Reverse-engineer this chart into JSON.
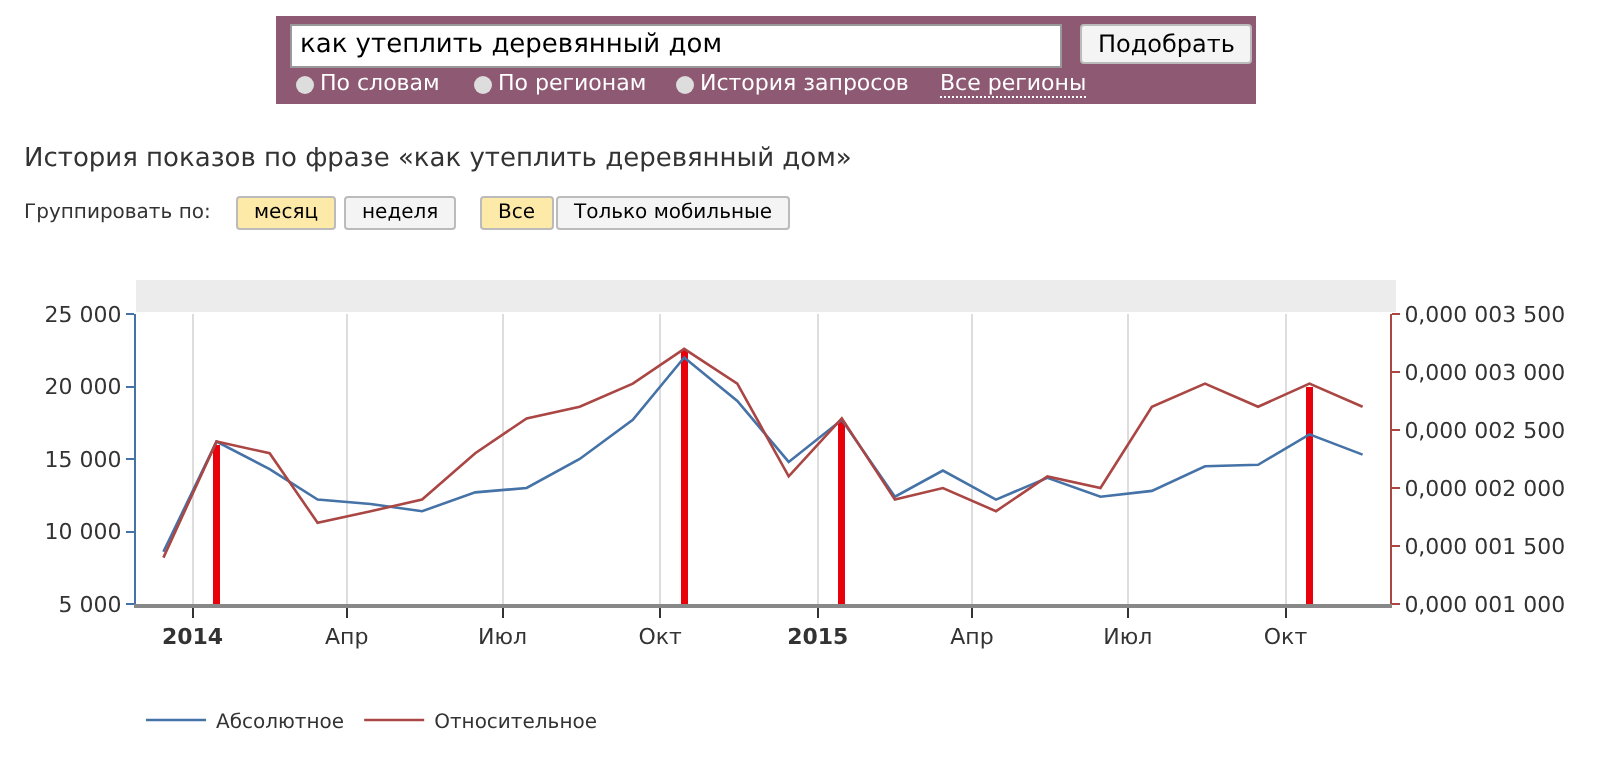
{
  "chart_data": {
    "type": "line",
    "title": "История показов по фразе «как утеплить деревянный дом»",
    "annotations": [
      "как утеплить деревянный дом",
      "Подобрать",
      "По словам",
      "По регионам",
      "История запросов",
      "Все регионы",
      "Группировать по:",
      "месяц",
      "неделя",
      "Все",
      "Только мобильные"
    ],
    "x": [
      "2013-12-15",
      "2014-01-15",
      "2014-02-15",
      "2014-03-15",
      "2014-04-15",
      "2014-05-15",
      "2014-06-15",
      "2014-07-15",
      "2014-08-15",
      "2014-09-15",
      "2014-10-15",
      "2014-11-15",
      "2014-12-15",
      "2015-01-15",
      "2015-02-15",
      "2015-03-15",
      "2015-04-15",
      "2015-05-15",
      "2015-06-15",
      "2015-07-15",
      "2015-08-15",
      "2015-09-15",
      "2015-10-15",
      "2015-11-15"
    ],
    "series": [
      {
        "name": "Абсолютное",
        "color": "#4572a7",
        "values": [
          8600,
          16200,
          14300,
          12200,
          11900,
          11400,
          12700,
          13000,
          15000,
          17700,
          22000,
          19000,
          14800,
          17700,
          12400,
          14200,
          12200,
          13700,
          12400,
          12800,
          14500,
          14600,
          16700,
          15300
        ]
      },
      {
        "name": "Относительное",
        "color": "#aa4643",
        "axis": "y2",
        "values": [
          1.4e-06,
          2.4e-06,
          2.3e-06,
          1.7e-06,
          1.8e-06,
          1.9e-06,
          2.3e-06,
          2.6e-06,
          2.7e-06,
          2.9e-06,
          3.2e-06,
          2.9e-06,
          2.1e-06,
          2.6e-06,
          1.9e-06,
          2e-06,
          1.8e-06,
          2.1e-06,
          2e-06,
          2.7e-06,
          2.9e-06,
          2.7e-06,
          2.9e-06,
          2.7e-06
        ]
      },
      {
        "type": "bar",
        "color": "#e8000b",
        "x": [
          "2014-01-15",
          "2014-10-15",
          "2015-01-15",
          "2015-10-15"
        ],
        "values": [
          16000,
          22500,
          17600,
          20000
        ]
      }
    ],
    "xlim": [
      "2013-11-29",
      "2015-12-01"
    ],
    "xticks": [
      {
        "value": "2014-01-01",
        "label": "2014"
      },
      {
        "value": "2014-04-01",
        "label": "Апр"
      },
      {
        "value": "2014-07-01",
        "label": "Июл"
      },
      {
        "value": "2014-10-01",
        "label": "Окт"
      },
      {
        "value": "2015-01-01",
        "label": "2015"
      },
      {
        "value": "2015-04-01",
        "label": "Апр"
      },
      {
        "value": "2015-07-01",
        "label": "Июл"
      },
      {
        "value": "2015-10-01",
        "label": "Окт"
      }
    ],
    "ylim": [
      5000,
      25000
    ],
    "yticks": [
      {
        "value": 5000,
        "label": "5 000"
      },
      {
        "value": 10000,
        "label": "10 000"
      },
      {
        "value": 15000,
        "label": "15 000"
      },
      {
        "value": 20000,
        "label": "20 000"
      },
      {
        "value": 25000,
        "label": "25 000"
      }
    ],
    "y2lim": [
      1e-06,
      3.5e-06
    ],
    "y2ticks": [
      {
        "value": 1e-06,
        "label": "0,000 001 000"
      },
      {
        "value": 1.5e-06,
        "label": "0,000 001 500"
      },
      {
        "value": 2e-06,
        "label": "0,000 002 000"
      },
      {
        "value": 2.5e-06,
        "label": "0,000 002 500"
      },
      {
        "value": 3e-06,
        "label": "0,000 003 000"
      },
      {
        "value": 3.5e-06,
        "label": "0,000 003 500"
      }
    ],
    "grid": "x",
    "legend": "bottom left",
    "marker": "none",
    "line_style": "solid"
  }
}
